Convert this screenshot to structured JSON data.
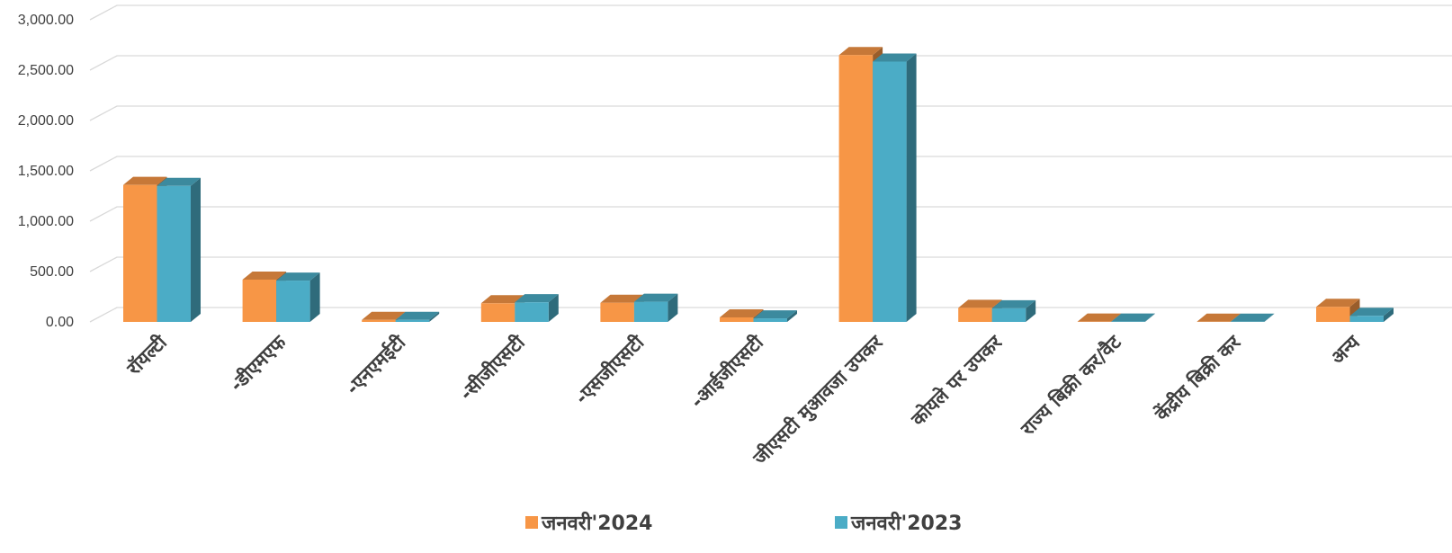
{
  "chart_data": {
    "type": "bar",
    "title": "",
    "xlabel": "",
    "ylabel": "",
    "ylim": [
      0,
      3000
    ],
    "yticks": [
      "0.00",
      "500.00",
      "1,000.00",
      "1,500.00",
      "2,000.00",
      "2,500.00",
      "3,000.00"
    ],
    "grid": true,
    "legend_position": "bottom",
    "categories": [
      "रॉयल्टी",
      "-डीएमएफ",
      "-एनएमईटी",
      "-सीजीएसटी",
      "-एसजीएसटी",
      "-आईजीएसटी",
      "जीएसटी मुआवजा उपकर",
      "कोयले पर उपकर",
      "राज्य बिक्री कर/वैट",
      "केंद्रीय बिक्री कर",
      "अन्य"
    ],
    "series": [
      {
        "name": "जनवरी'2024",
        "values": [
          1360,
          420,
          20,
          185,
          190,
          45,
          2650,
          140,
          3,
          2,
          150
        ],
        "color": "#f79646"
      },
      {
        "name": "जनवरी'2023",
        "values": [
          1350,
          410,
          20,
          195,
          200,
          35,
          2585,
          135,
          3,
          2,
          60
        ],
        "color": "#4bacc6"
      }
    ]
  }
}
